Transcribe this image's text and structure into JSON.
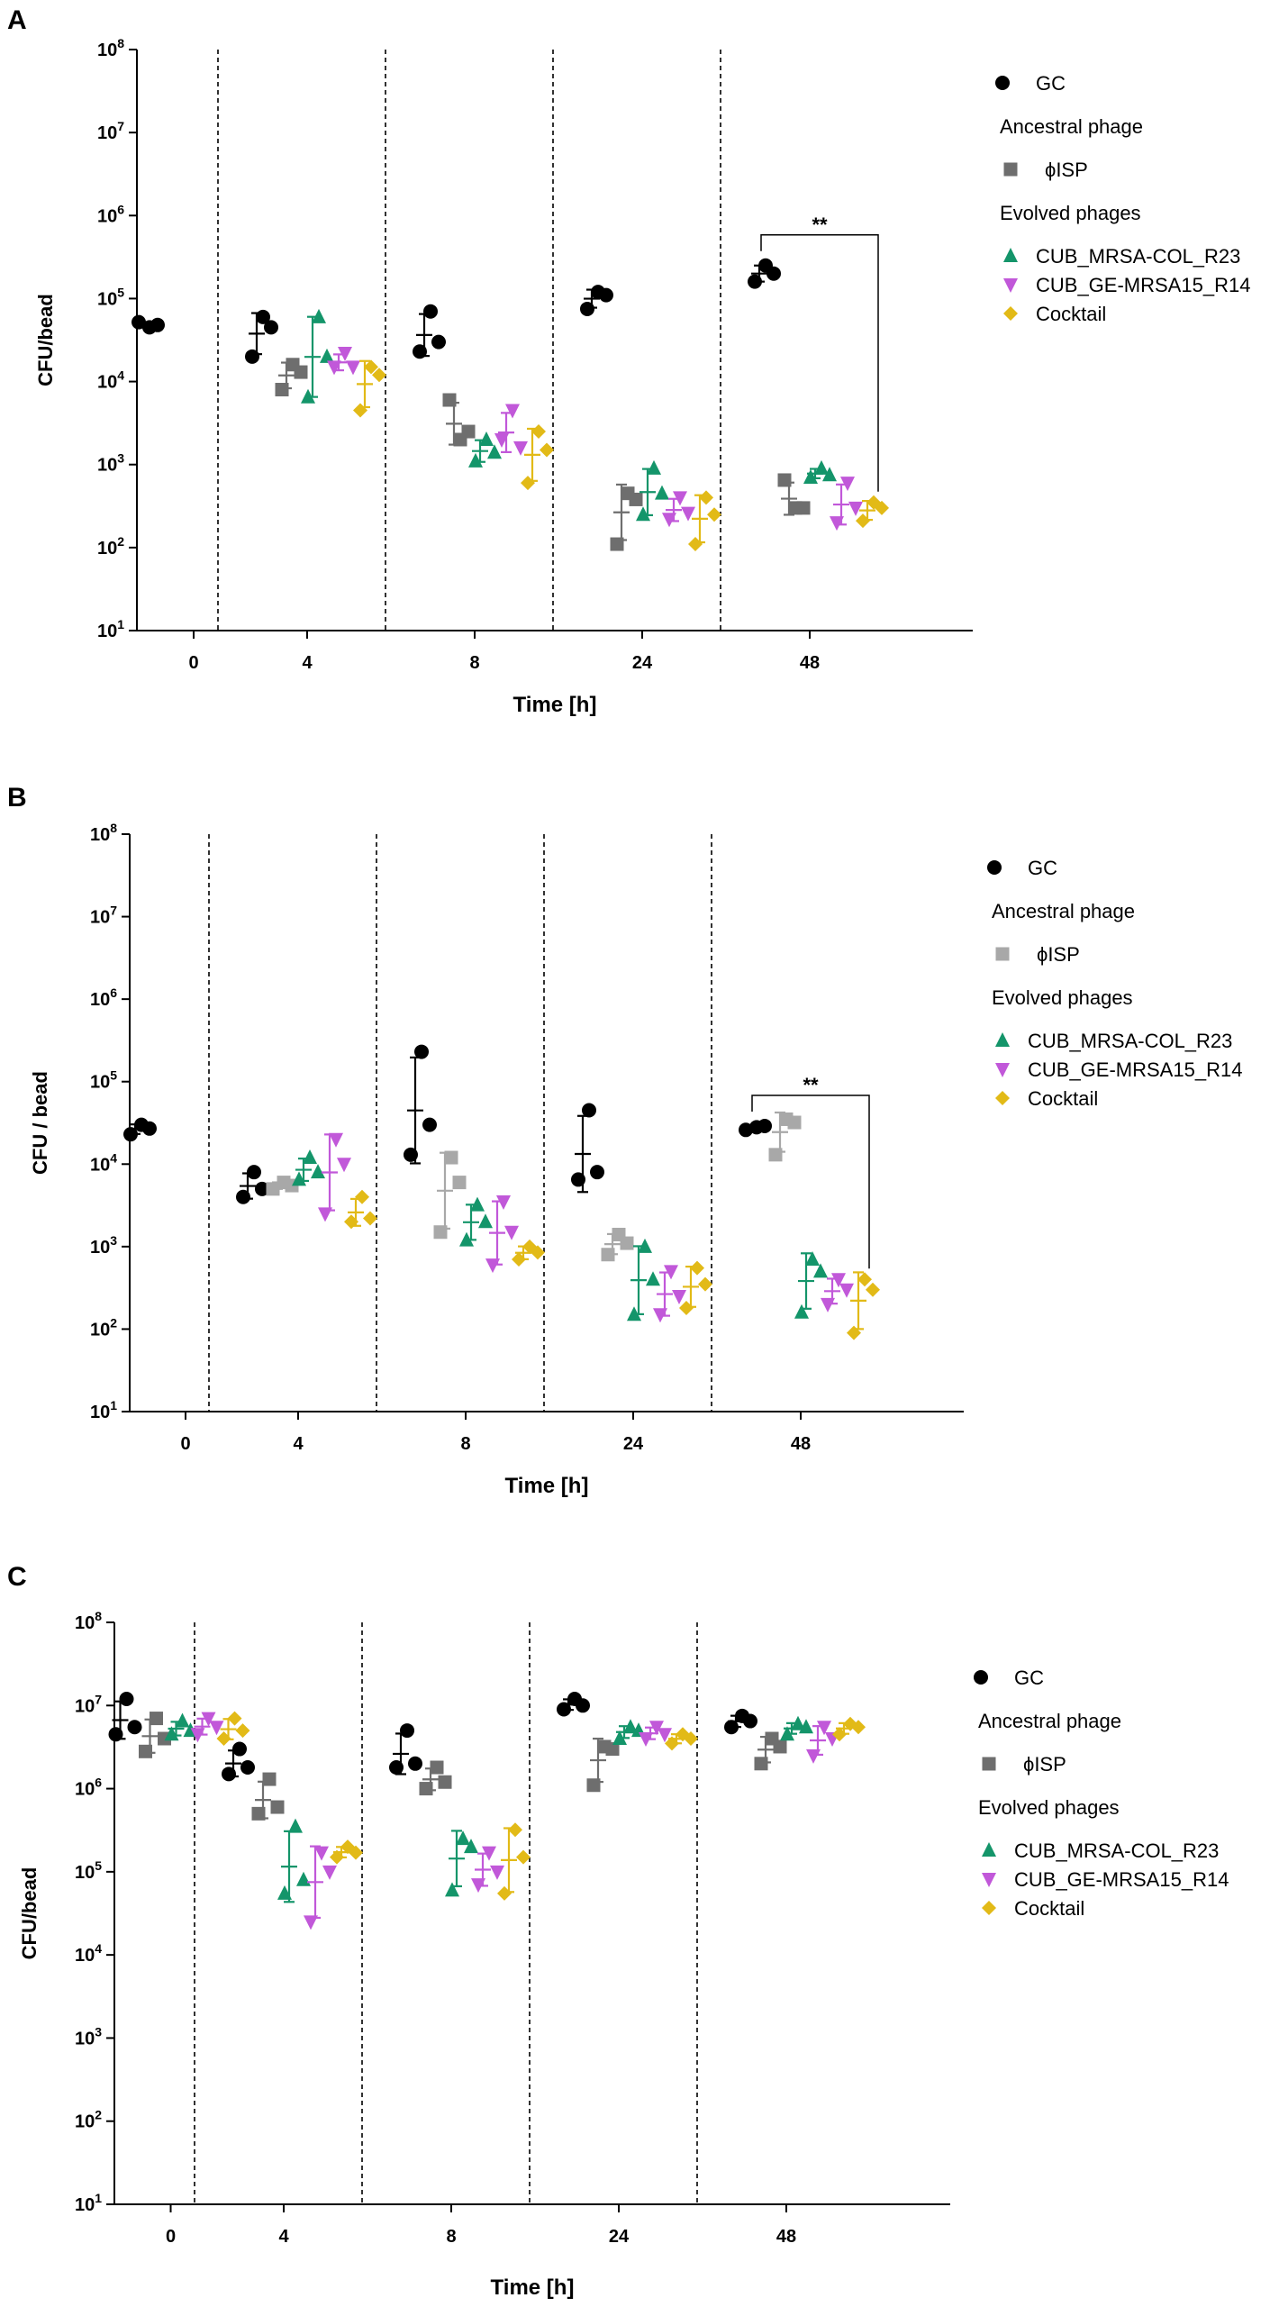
{
  "chart_data": [
    {
      "type": "scatter",
      "panel": "A",
      "xlabel": "Time [h]",
      "ylabel": "CFU/bead",
      "yscale": "log10",
      "ylim": [
        10,
        100000000
      ],
      "y_ticks": [
        {
          "base": "10",
          "exp": "1"
        },
        {
          "base": "10",
          "exp": "2"
        },
        {
          "base": "10",
          "exp": "3"
        },
        {
          "base": "10",
          "exp": "4"
        },
        {
          "base": "10",
          "exp": "5"
        },
        {
          "base": "10",
          "exp": "6"
        },
        {
          "base": "10",
          "exp": "7"
        },
        {
          "base": "10",
          "exp": "8"
        }
      ],
      "categories": [
        "0",
        "4",
        "8",
        "24",
        "48"
      ],
      "legend": {
        "items": [
          {
            "kind": "entry",
            "text": "GC",
            "series": 0
          },
          {
            "kind": "header",
            "text": "Ancestral phage"
          },
          {
            "kind": "entry",
            "text": "ϕISP",
            "series": 1
          },
          {
            "kind": "header",
            "text": "Evolved phages"
          },
          {
            "kind": "entry",
            "text": "CUB_MRSA-COL_R23",
            "series": 2
          },
          {
            "kind": "entry",
            "text": "CUB_GE-MRSA15_R14",
            "series": 3
          },
          {
            "kind": "entry",
            "text": "Cocktail",
            "series": 4
          }
        ]
      },
      "series": [
        {
          "name": "GC",
          "marker": "circle",
          "color": "#000000",
          "values": [
            [
              45000,
              52000,
              48000
            ],
            [
              60000,
              20000,
              45000
            ],
            [
              70000,
              23000,
              30000
            ],
            [
              120000,
              75000,
              110000
            ],
            [
              250000,
              160000,
              200000
            ]
          ]
        },
        {
          "name": "ϕISP",
          "marker": "square",
          "color": "#6e6e6e",
          "values": [
            null,
            [
              16000,
              8000,
              13000
            ],
            [
              2000,
              6000,
              2500
            ],
            [
              450,
              110,
              380
            ],
            [
              300,
              650,
              300
            ]
          ]
        },
        {
          "name": "CUB_MRSA-COL_R23",
          "marker": "triangle-up",
          "color": "#14956a",
          "values": [
            null,
            [
              60000,
              6500,
              20000
            ],
            [
              2000,
              1100,
              1400
            ],
            [
              900,
              250,
              450
            ],
            [
              900,
              700,
              750
            ]
          ]
        },
        {
          "name": "CUB_GE-MRSA15_R14",
          "marker": "triangle-down",
          "color": "#c158d9",
          "values": [
            null,
            [
              22000,
              15000,
              15000
            ],
            [
              4500,
              2000,
              1600
            ],
            [
              400,
              220,
              260
            ],
            [
              600,
              200,
              300
            ]
          ]
        },
        {
          "name": "Cocktail",
          "marker": "diamond",
          "color": "#e2ba17",
          "values": [
            null,
            [
              15000,
              4500,
              12000
            ],
            [
              2500,
              600,
              1500
            ],
            [
              400,
              110,
              250
            ],
            [
              350,
              210,
              300
            ]
          ]
        }
      ],
      "significance": [
        {
          "label": "**",
          "between": [
            "GC",
            "Cocktail"
          ],
          "at": "48"
        }
      ]
    },
    {
      "type": "scatter",
      "panel": "B",
      "xlabel": "Time [h]",
      "ylabel": "CFU / bead",
      "yscale": "log10",
      "ylim": [
        10,
        100000000
      ],
      "y_ticks": [
        {
          "base": "10",
          "exp": "1"
        },
        {
          "base": "10",
          "exp": "2"
        },
        {
          "base": "10",
          "exp": "3"
        },
        {
          "base": "10",
          "exp": "4"
        },
        {
          "base": "10",
          "exp": "5"
        },
        {
          "base": "10",
          "exp": "6"
        },
        {
          "base": "10",
          "exp": "7"
        },
        {
          "base": "10",
          "exp": "8"
        }
      ],
      "categories": [
        "0",
        "4",
        "8",
        "24",
        "48"
      ],
      "legend": {
        "items": [
          {
            "kind": "entry",
            "text": "GC",
            "series": 0
          },
          {
            "kind": "header",
            "text": "Ancestral phage"
          },
          {
            "kind": "entry",
            "text": "ϕISP",
            "series": 1
          },
          {
            "kind": "header",
            "text": "Evolved phages"
          },
          {
            "kind": "entry",
            "text": "CUB_MRSA-COL_R23",
            "series": 2
          },
          {
            "kind": "entry",
            "text": "CUB_GE-MRSA15_R14",
            "series": 3
          },
          {
            "kind": "entry",
            "text": "Cocktail",
            "series": 4
          }
        ]
      },
      "series": [
        {
          "name": "GC",
          "marker": "circle",
          "color": "#000000",
          "values": [
            [
              30000,
              23000,
              27000
            ],
            [
              8000,
              4000,
              5000
            ],
            [
              230000,
              13000,
              30000
            ],
            [
              45000,
              6500,
              8000
            ],
            [
              28000,
              26000,
              29000
            ]
          ]
        },
        {
          "name": "ϕISP",
          "marker": "square",
          "color": "#a8a8a8",
          "values": [
            null,
            [
              6000,
              5000,
              5500
            ],
            [
              12000,
              1500,
              6000
            ],
            [
              1400,
              800,
              1100
            ],
            [
              35000,
              13000,
              32000
            ]
          ]
        },
        {
          "name": "CUB_MRSA-COL_R23",
          "marker": "triangle-up",
          "color": "#14956a",
          "values": [
            null,
            [
              12000,
              6500,
              8000
            ],
            [
              3200,
              1200,
              2000
            ],
            [
              1000,
              150,
              400
            ],
            [
              700,
              160,
              500
            ]
          ]
        },
        {
          "name": "CUB_GE-MRSA15_R14",
          "marker": "triangle-down",
          "color": "#c158d9",
          "values": [
            null,
            [
              20000,
              2500,
              10000
            ],
            [
              3500,
              600,
              1500
            ],
            [
              500,
              150,
              250
            ],
            [
              400,
              200,
              300
            ]
          ]
        },
        {
          "name": "Cocktail",
          "marker": "diamond",
          "color": "#e2ba17",
          "values": [
            null,
            [
              4000,
              2000,
              2200
            ],
            [
              1000,
              700,
              850
            ],
            [
              550,
              180,
              350
            ],
            [
              400,
              90,
              300
            ]
          ]
        }
      ],
      "significance": [
        {
          "label": "**",
          "between": [
            "GC",
            "Cocktail"
          ],
          "at": "48"
        }
      ]
    },
    {
      "type": "scatter",
      "panel": "C",
      "xlabel": "Time [h]",
      "ylabel": "CFU/bead",
      "yscale": "log10",
      "ylim": [
        10,
        100000000
      ],
      "y_ticks": [
        {
          "base": "10",
          "exp": "1"
        },
        {
          "base": "10",
          "exp": "2"
        },
        {
          "base": "10",
          "exp": "3"
        },
        {
          "base": "10",
          "exp": "4"
        },
        {
          "base": "10",
          "exp": "5"
        },
        {
          "base": "10",
          "exp": "6"
        },
        {
          "base": "10",
          "exp": "7"
        },
        {
          "base": "10",
          "exp": "8"
        }
      ],
      "categories": [
        "0",
        "4",
        "8",
        "24",
        "48"
      ],
      "legend": {
        "items": [
          {
            "kind": "entry",
            "text": "GC",
            "series": 0
          },
          {
            "kind": "header",
            "text": "Ancestral phage"
          },
          {
            "kind": "entry",
            "text": "ϕISP",
            "series": 1
          },
          {
            "kind": "header",
            "text": "Evolved phages"
          },
          {
            "kind": "entry",
            "text": "CUB_MRSA-COL_R23",
            "series": 2
          },
          {
            "kind": "entry",
            "text": "CUB_GE-MRSA15_R14",
            "series": 3
          },
          {
            "kind": "entry",
            "text": "Cocktail",
            "series": 4
          }
        ]
      },
      "series": [
        {
          "name": "GC",
          "marker": "circle",
          "color": "#000000",
          "values": [
            [
              12000000,
              4500000,
              5500000
            ],
            [
              3000000,
              1500000,
              1800000
            ],
            [
              5000000,
              1800000,
              2000000
            ],
            [
              12000000,
              9000000,
              10000000
            ],
            [
              7500000,
              5500000,
              6500000
            ]
          ]
        },
        {
          "name": "ϕISP",
          "marker": "square",
          "color": "#6e6e6e",
          "values": [
            [
              7000000,
              2800000,
              4000000
            ],
            [
              1300000,
              500000,
              600000
            ],
            [
              1800000,
              1000000,
              1200000
            ],
            [
              3200000,
              1100000,
              3000000
            ],
            [
              4000000,
              2000000,
              3200000
            ]
          ]
        },
        {
          "name": "CUB_MRSA-COL_R23",
          "marker": "triangle-up",
          "color": "#14956a",
          "values": [
            [
              6500000,
              4500000,
              5000000
            ],
            [
              350000,
              55000,
              80000
            ],
            [
              250000,
              60000,
              200000
            ],
            [
              5500000,
              4000000,
              5000000
            ],
            [
              6000000,
              4500000,
              5500000
            ]
          ]
        },
        {
          "name": "CUB_GE-MRSA15_R14",
          "marker": "triangle-down",
          "color": "#c158d9",
          "values": [
            [
              7000000,
              4500000,
              5500000
            ],
            [
              170000,
              25000,
              100000
            ],
            [
              170000,
              70000,
              100000
            ],
            [
              5500000,
              4000000,
              4500000
            ],
            [
              5500000,
              2500000,
              4000000
            ]
          ]
        },
        {
          "name": "Cocktail",
          "marker": "diamond",
          "color": "#e2ba17",
          "values": [
            [
              7000000,
              4000000,
              5000000
            ],
            [
              200000,
              150000,
              170000
            ],
            [
              320000,
              55000,
              150000
            ],
            [
              4500000,
              3500000,
              4000000
            ],
            [
              6000000,
              4500000,
              5500000
            ]
          ]
        }
      ]
    }
  ]
}
